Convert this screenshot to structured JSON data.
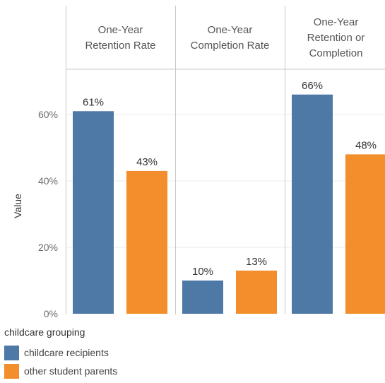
{
  "chart_data": {
    "type": "bar",
    "panels": [
      {
        "header": [
          "One-Year",
          "Retention Rate"
        ],
        "values": [
          61,
          43
        ],
        "labels": [
          "61%",
          "43%"
        ]
      },
      {
        "header": [
          "One-Year",
          "Completion Rate"
        ],
        "values": [
          10,
          13
        ],
        "labels": [
          "10%",
          "13%"
        ]
      },
      {
        "header": [
          "One-Year",
          "Retention or",
          "Completion"
        ],
        "values": [
          66,
          48
        ],
        "labels": [
          "66%",
          "48%"
        ]
      }
    ],
    "series": [
      {
        "name": "childcare recipients",
        "color": "#4e79a7"
      },
      {
        "name": "other student parents",
        "color": "#f28e2b"
      }
    ],
    "ylabel": "Value",
    "ylim": [
      0,
      70
    ],
    "yticks": [
      0,
      20,
      40,
      60
    ],
    "ytick_labels": [
      "0%",
      "20%",
      "40%",
      "60%"
    ],
    "grid": true,
    "legend_position": "bottom-left"
  },
  "legend": {
    "title": "childcare grouping",
    "items": [
      {
        "label": "childcare recipients",
        "color": "#4e79a7"
      },
      {
        "label": "other student parents",
        "color": "#f28e2b"
      }
    ]
  }
}
